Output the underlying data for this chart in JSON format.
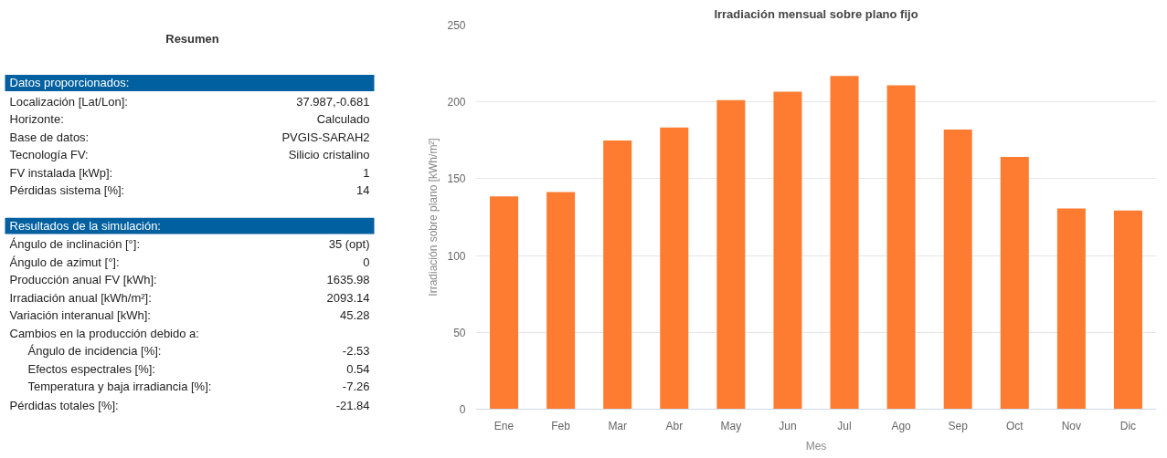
{
  "chart_data": [
    {
      "type": "other",
      "title": "Resumen",
      "annotations": [
        "Datos proporcionados:",
        "Localización [Lat/Lon]:",
        "37.987,-0.681",
        "Horizonte:",
        "Calculado",
        "Base de datos:",
        "PVGIS-SARAH2",
        "Tecnología FV:",
        "Silicio cristalino",
        "FV instalada [kWp]:",
        "1",
        "Pérdidas sistema [%]:",
        "14",
        "Resultados de la simulación:",
        "Ángulo de inclinación [°]:",
        "35 (opt)",
        "Ángulo de azimut [°]:",
        "0",
        "Producción anual FV [kWh]:",
        "1635.98",
        "Irradiación anual [kWh/m²]:",
        "2093.14",
        "Variación interanual [kWh]:",
        "45.28",
        "Cambios en la producción debido a:",
        "Ángulo de incidencia [%]:",
        "-2.53",
        "Efectos espectrales [%]:",
        "0.54",
        "Temperatura y baja irradiancia [%]:",
        "-7.26",
        "Pérdidas totales [%]:",
        "-21.84"
      ]
    },
    {
      "type": "bar",
      "title": "Irradiación mensual sobre plano fijo",
      "xlabel": "Mes",
      "ylabel": "Irradiación sobre plano [kWh/m²]",
      "categories": [
        "Ene",
        "Feb",
        "Mar",
        "Abr",
        "May",
        "Jun",
        "Jul",
        "Ago",
        "Sep",
        "Oct",
        "Nov",
        "Dic"
      ],
      "series": [
        {
          "color": "#fe7c31",
          "values": [
            138.5,
            141.4,
            174.9,
            183.4,
            201.2,
            206.6,
            216.9,
            210.8,
            182.0,
            164.2,
            130.7,
            129.3
          ]
        }
      ],
      "ylim": [
        0,
        250
      ],
      "yticks": [
        0,
        50,
        100,
        150,
        200,
        250
      ],
      "grid": "y"
    }
  ]
}
